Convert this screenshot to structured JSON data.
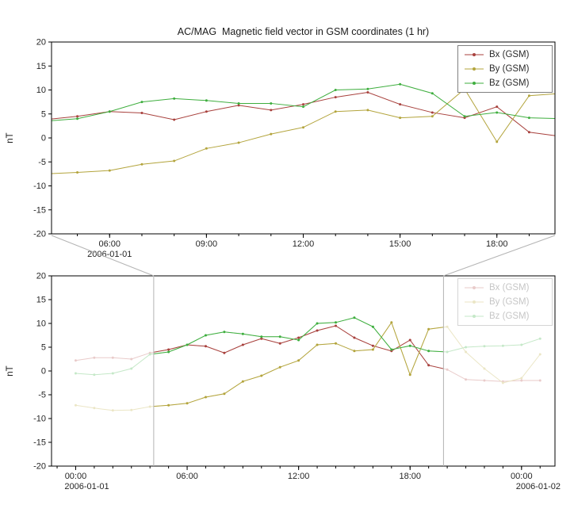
{
  "chart_data": {
    "type": "line",
    "title": "AC/MAG  Magnetic field vector in GSM coordinates (1 hr)",
    "ylabel": "nT",
    "ylim": [
      -20,
      20
    ],
    "yticks": [
      20,
      15,
      10,
      5,
      0,
      -5,
      -10,
      -15,
      -20
    ],
    "axis_color": "#000000",
    "text_color": "#262626",
    "selection_color": "#b4b4b4",
    "legend_style": {
      "border": "#808080",
      "faded_border": "#d4d4d4",
      "faded_text": "#c6c6c6"
    },
    "x_hours": [
      0,
      1,
      2,
      3,
      4,
      5,
      6,
      7,
      8,
      9,
      10,
      11,
      12,
      13,
      14,
      15,
      16,
      17,
      18,
      19,
      20,
      21,
      22,
      23,
      24,
      25
    ],
    "series": [
      {
        "name": "Bx (GSM)",
        "color": "#a8413d",
        "faded_color": "#e9cbca",
        "values": [
          2.2,
          2.8,
          2.8,
          2.5,
          3.8,
          4.5,
          5.5,
          5.2,
          3.8,
          5.5,
          6.8,
          5.8,
          7.0,
          8.5,
          9.5,
          7.0,
          5.3,
          4.2,
          6.5,
          1.2,
          0.3,
          -1.8,
          -2.0,
          -2.2,
          -2.0,
          -2.0
        ]
      },
      {
        "name": "By (GSM)",
        "color": "#b3a43c",
        "faded_color": "#ebe6c6",
        "values": [
          -7.2,
          -7.8,
          -8.3,
          -8.2,
          -7.5,
          -7.2,
          -6.8,
          -5.5,
          -4.8,
          -2.2,
          -1.0,
          0.8,
          2.2,
          5.5,
          5.8,
          4.2,
          4.5,
          10.2,
          -0.8,
          8.8,
          9.3,
          4.0,
          0.5,
          -2.5,
          -1.5,
          3.5
        ]
      },
      {
        "name": "Bz (GSM)",
        "color": "#3eae3e",
        "faded_color": "#c5e8c8",
        "values": [
          -0.5,
          -0.8,
          -0.5,
          0.5,
          3.5,
          4.0,
          5.5,
          7.5,
          8.2,
          7.8,
          7.2,
          7.2,
          6.5,
          10.0,
          10.2,
          11.2,
          9.3,
          4.5,
          5.3,
          4.2,
          4.0,
          5.0,
          5.2,
          5.3,
          5.5,
          6.8
        ]
      }
    ],
    "panels": [
      {
        "id": "top",
        "xlim": [
          4.2,
          19.8
        ],
        "xticks": [
          {
            "t": 6,
            "label": "06:00"
          },
          {
            "t": 9,
            "label": "09:00"
          },
          {
            "t": 12,
            "label": "12:00"
          },
          {
            "t": 15,
            "label": "15:00"
          },
          {
            "t": 18,
            "label": "18:00"
          }
        ],
        "date_labels": [
          {
            "t": 6,
            "label": "2006-01-01"
          }
        ],
        "fade_outside_selection": false
      },
      {
        "id": "bottom",
        "xlim": [
          -1.3,
          25.8
        ],
        "xticks": [
          {
            "t": 0,
            "label": "00:00"
          },
          {
            "t": 6,
            "label": "06:00"
          },
          {
            "t": 12,
            "label": "12:00"
          },
          {
            "t": 18,
            "label": "18:00"
          },
          {
            "t": 24,
            "label": "00:00"
          }
        ],
        "date_labels": [
          {
            "t": 0.6,
            "label": "2006-01-01"
          },
          {
            "t": 24.9,
            "label": "2006-01-02"
          }
        ],
        "selection": [
          4.2,
          19.8
        ],
        "fade_outside_selection": true
      }
    ]
  }
}
